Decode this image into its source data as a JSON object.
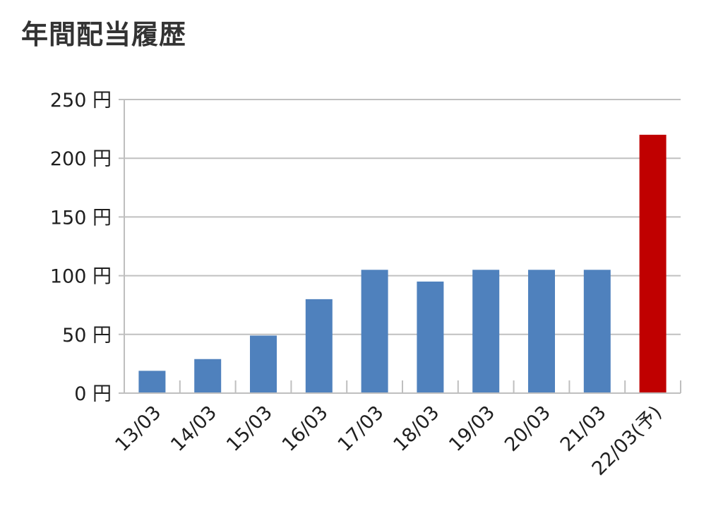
{
  "chart_data": {
    "type": "bar",
    "title": "年間配当履歴",
    "categories": [
      "13/03",
      "14/03",
      "15/03",
      "16/03",
      "17/03",
      "18/03",
      "19/03",
      "20/03",
      "21/03",
      "22/03(予)"
    ],
    "values": [
      19,
      29,
      49,
      80,
      105,
      95,
      105,
      105,
      105,
      220
    ],
    "ylim": [
      0,
      250
    ],
    "yticks": [
      0,
      50,
      100,
      150,
      200,
      250
    ],
    "ytick_labels": [
      "0 円",
      "50 円",
      "100 円",
      "150 円",
      "200 円",
      "250 円"
    ],
    "xlabel": "",
    "ylabel": "",
    "grid": true,
    "legend": "none",
    "colors": {
      "actual": "#4f81bd",
      "forecast": "#c00000",
      "grid": "#c0c0c0",
      "axis": "#bfbfbf"
    },
    "forecast_indices": [
      9
    ]
  }
}
